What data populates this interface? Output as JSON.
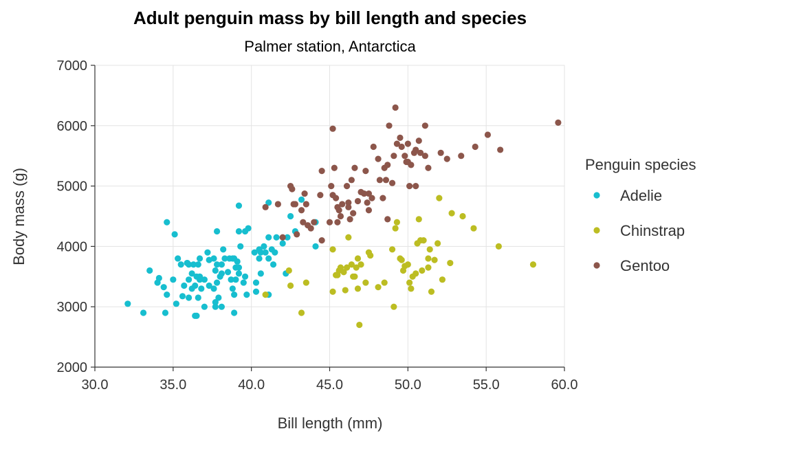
{
  "chart_data": {
    "type": "scatter",
    "title": "Adult penguin mass by bill length and species",
    "subtitle": "Palmer station, Antarctica",
    "xlabel": "Bill length (mm)",
    "ylabel": "Body mass (g)",
    "xlim": [
      30,
      60
    ],
    "ylim": [
      2000,
      7000
    ],
    "xticks": [
      30,
      35,
      40,
      45,
      50,
      55,
      60
    ],
    "xtick_labels": [
      "30.0",
      "35.0",
      "40.0",
      "45.0",
      "50.0",
      "55.0",
      "60.0"
    ],
    "yticks": [
      2000,
      3000,
      4000,
      5000,
      6000,
      7000
    ],
    "ytick_labels": [
      "2000",
      "3000",
      "4000",
      "5000",
      "6000",
      "7000"
    ],
    "grid": true,
    "legend": {
      "title": "Penguin species",
      "position": "right"
    },
    "series": [
      {
        "name": "Adelie",
        "color": "#17becf",
        "points": [
          [
            32.1,
            3050
          ],
          [
            33.1,
            2900
          ],
          [
            33.5,
            3600
          ],
          [
            34.0,
            3400
          ],
          [
            34.1,
            3475
          ],
          [
            34.4,
            3325
          ],
          [
            34.5,
            2900
          ],
          [
            34.6,
            3200
          ],
          [
            34.6,
            4400
          ],
          [
            35.0,
            3450
          ],
          [
            35.1,
            4200
          ],
          [
            35.2,
            3050
          ],
          [
            35.3,
            3800
          ],
          [
            35.5,
            3700
          ],
          [
            35.6,
            3175
          ],
          [
            35.7,
            3350
          ],
          [
            35.9,
            3725
          ],
          [
            36.0,
            3150
          ],
          [
            36.0,
            3450
          ],
          [
            36.0,
            3700
          ],
          [
            36.2,
            3550
          ],
          [
            36.2,
            3300
          ],
          [
            36.3,
            3700
          ],
          [
            36.4,
            3350
          ],
          [
            36.5,
            3500
          ],
          [
            36.5,
            2850
          ],
          [
            36.6,
            3700
          ],
          [
            36.6,
            3150
          ],
          [
            36.7,
            3800
          ],
          [
            36.7,
            3450
          ],
          [
            36.8,
            3300
          ],
          [
            37.0,
            3000
          ],
          [
            37.0,
            3450
          ],
          [
            37.2,
            3900
          ],
          [
            37.3,
            3350
          ],
          [
            37.3,
            3775
          ],
          [
            37.6,
            3800
          ],
          [
            37.7,
            3600
          ],
          [
            37.7,
            3075
          ],
          [
            37.8,
            3700
          ],
          [
            37.8,
            3400
          ],
          [
            37.8,
            4250
          ],
          [
            37.9,
            3150
          ],
          [
            38.0,
            3500
          ],
          [
            38.1,
            3700
          ],
          [
            38.1,
            3550
          ],
          [
            38.2,
            3950
          ],
          [
            38.3,
            3800
          ],
          [
            38.5,
            3575
          ],
          [
            38.6,
            3800
          ],
          [
            38.7,
            3450
          ],
          [
            38.8,
            3800
          ],
          [
            38.8,
            3300
          ],
          [
            38.9,
            3800
          ],
          [
            38.9,
            2900
          ],
          [
            39.0,
            3650
          ],
          [
            39.0,
            3450
          ],
          [
            39.2,
            4250
          ],
          [
            39.2,
            3550
          ],
          [
            39.3,
            4000
          ],
          [
            39.5,
            3400
          ],
          [
            39.6,
            3500
          ],
          [
            39.6,
            4250
          ],
          [
            39.7,
            3200
          ],
          [
            39.8,
            4300
          ],
          [
            40.2,
            3900
          ],
          [
            40.3,
            3400
          ],
          [
            40.5,
            3950
          ],
          [
            40.6,
            3550
          ],
          [
            40.8,
            4000
          ],
          [
            40.9,
            3900
          ],
          [
            41.1,
            3800
          ],
          [
            41.1,
            4150
          ],
          [
            41.3,
            3950
          ],
          [
            41.5,
            3900
          ],
          [
            41.6,
            4150
          ],
          [
            42.0,
            4050
          ],
          [
            42.2,
            3550
          ],
          [
            42.3,
            4150
          ],
          [
            42.8,
            4250
          ],
          [
            43.2,
            4775
          ],
          [
            44.1,
            4000
          ],
          [
            36.4,
            2850
          ],
          [
            39.1,
            3750
          ],
          [
            40.3,
            3250
          ],
          [
            36.7,
            3500
          ],
          [
            41.1,
            3200
          ],
          [
            37.6,
            3300
          ],
          [
            35.9,
            3725
          ],
          [
            39.2,
            4675
          ],
          [
            41.1,
            4725
          ],
          [
            37.7,
            3000
          ],
          [
            39.2,
            3650
          ],
          [
            38.9,
            3200
          ],
          [
            42.5,
            4500
          ],
          [
            44.1,
            4400
          ],
          [
            40.6,
            3900
          ],
          [
            40.5,
            3800
          ],
          [
            38.1,
            3000
          ],
          [
            41.4,
            3700
          ]
        ]
      },
      {
        "name": "Chinstrap",
        "color": "#bcbd22",
        "points": [
          [
            40.9,
            3200
          ],
          [
            42.4,
            3600
          ],
          [
            42.5,
            3350
          ],
          [
            43.2,
            2900
          ],
          [
            43.5,
            3400
          ],
          [
            45.2,
            3950
          ],
          [
            45.2,
            3250
          ],
          [
            45.4,
            3525
          ],
          [
            45.5,
            3525
          ],
          [
            45.6,
            3600
          ],
          [
            45.7,
            3650
          ],
          [
            45.9,
            3575
          ],
          [
            46.0,
            3275
          ],
          [
            46.1,
            3650
          ],
          [
            46.2,
            4150
          ],
          [
            46.4,
            3700
          ],
          [
            46.6,
            3500
          ],
          [
            46.7,
            3650
          ],
          [
            46.8,
            3800
          ],
          [
            46.8,
            3300
          ],
          [
            46.9,
            2700
          ],
          [
            47.0,
            3700
          ],
          [
            47.5,
            3900
          ],
          [
            47.6,
            3850
          ],
          [
            48.1,
            3325
          ],
          [
            48.5,
            3400
          ],
          [
            49.0,
            3950
          ],
          [
            49.2,
            4300
          ],
          [
            49.3,
            4400
          ],
          [
            49.5,
            3800
          ],
          [
            49.6,
            3775
          ],
          [
            49.7,
            3600
          ],
          [
            49.8,
            3675
          ],
          [
            50.1,
            3400
          ],
          [
            50.2,
            3300
          ],
          [
            50.3,
            3500
          ],
          [
            50.5,
            3550
          ],
          [
            50.6,
            4050
          ],
          [
            50.8,
            4100
          ],
          [
            50.9,
            3600
          ],
          [
            51.0,
            4100
          ],
          [
            51.3,
            3650
          ],
          [
            51.4,
            3950
          ],
          [
            51.5,
            3250
          ],
          [
            51.7,
            3775
          ],
          [
            51.9,
            4050
          ],
          [
            52.0,
            4800
          ],
          [
            52.2,
            3450
          ],
          [
            52.7,
            3725
          ],
          [
            52.8,
            4550
          ],
          [
            53.5,
            4500
          ],
          [
            54.2,
            4300
          ],
          [
            55.8,
            4000
          ],
          [
            58.0,
            3700
          ],
          [
            47.3,
            3400
          ],
          [
            49.1,
            3000
          ],
          [
            50.0,
            3700
          ],
          [
            51.3,
            3800
          ],
          [
            50.7,
            4450
          ],
          [
            46.5,
            3500
          ]
        ]
      },
      {
        "name": "Gentoo",
        "color": "#8c564b",
        "points": [
          [
            40.9,
            4650
          ],
          [
            41.7,
            4700
          ],
          [
            42.0,
            4150
          ],
          [
            42.5,
            5000
          ],
          [
            42.6,
            4950
          ],
          [
            42.7,
            4700
          ],
          [
            42.8,
            4700
          ],
          [
            42.9,
            4200
          ],
          [
            43.2,
            4600
          ],
          [
            43.3,
            4400
          ],
          [
            43.4,
            4875
          ],
          [
            43.5,
            4700
          ],
          [
            43.6,
            4350
          ],
          [
            43.8,
            4300
          ],
          [
            44.0,
            4400
          ],
          [
            44.4,
            4850
          ],
          [
            44.5,
            5250
          ],
          [
            44.5,
            4100
          ],
          [
            45.0,
            4400
          ],
          [
            45.1,
            5000
          ],
          [
            45.2,
            5950
          ],
          [
            45.2,
            4850
          ],
          [
            45.3,
            5300
          ],
          [
            45.4,
            4800
          ],
          [
            45.5,
            4650
          ],
          [
            45.5,
            4400
          ],
          [
            45.6,
            4600
          ],
          [
            45.7,
            4500
          ],
          [
            45.8,
            4700
          ],
          [
            46.1,
            5000
          ],
          [
            46.2,
            4725
          ],
          [
            46.3,
            4450
          ],
          [
            46.4,
            5100
          ],
          [
            46.5,
            4550
          ],
          [
            46.6,
            5300
          ],
          [
            46.8,
            4750
          ],
          [
            47.0,
            4900
          ],
          [
            47.2,
            4875
          ],
          [
            47.3,
            5250
          ],
          [
            47.4,
            4725
          ],
          [
            47.5,
            4600
          ],
          [
            47.7,
            4800
          ],
          [
            47.8,
            5650
          ],
          [
            48.1,
            5450
          ],
          [
            48.2,
            5100
          ],
          [
            48.4,
            4800
          ],
          [
            48.5,
            5300
          ],
          [
            48.6,
            5100
          ],
          [
            48.7,
            4450
          ],
          [
            48.8,
            6000
          ],
          [
            49.0,
            5050
          ],
          [
            49.1,
            5500
          ],
          [
            49.2,
            6300
          ],
          [
            49.3,
            5700
          ],
          [
            49.5,
            5800
          ],
          [
            49.6,
            5650
          ],
          [
            49.8,
            5500
          ],
          [
            50.0,
            5400
          ],
          [
            50.1,
            5000
          ],
          [
            50.2,
            5350
          ],
          [
            50.4,
            5550
          ],
          [
            50.5,
            5600
          ],
          [
            50.7,
            5750
          ],
          [
            50.8,
            5550
          ],
          [
            51.1,
            5500
          ],
          [
            51.3,
            5300
          ],
          [
            52.1,
            5550
          ],
          [
            52.5,
            5450
          ],
          [
            53.4,
            5500
          ],
          [
            54.3,
            5650
          ],
          [
            55.1,
            5850
          ],
          [
            55.9,
            5600
          ],
          [
            59.6,
            6050
          ],
          [
            49.9,
            5400
          ],
          [
            50.0,
            5700
          ],
          [
            51.1,
            6000
          ],
          [
            50.5,
            5000
          ],
          [
            47.5,
            4875
          ],
          [
            46.2,
            4650
          ],
          [
            48.7,
            5350
          ]
        ]
      }
    ]
  }
}
